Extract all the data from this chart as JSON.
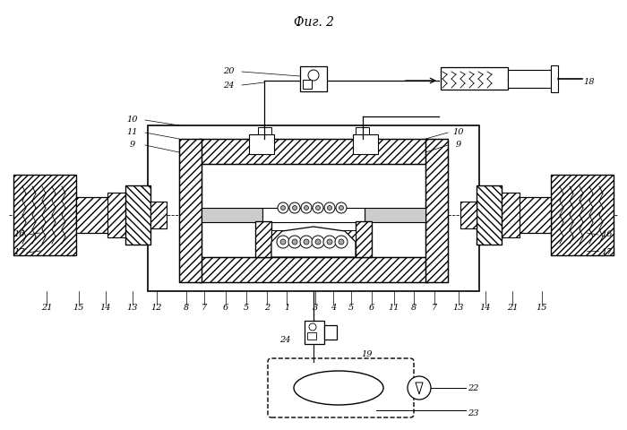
{
  "title": "Фиг. 2",
  "bg_color": "#ffffff",
  "line_color": "#000000",
  "hatch_color": "#000000",
  "figsize": [
    7.0,
    4.8
  ],
  "dpi": 100
}
